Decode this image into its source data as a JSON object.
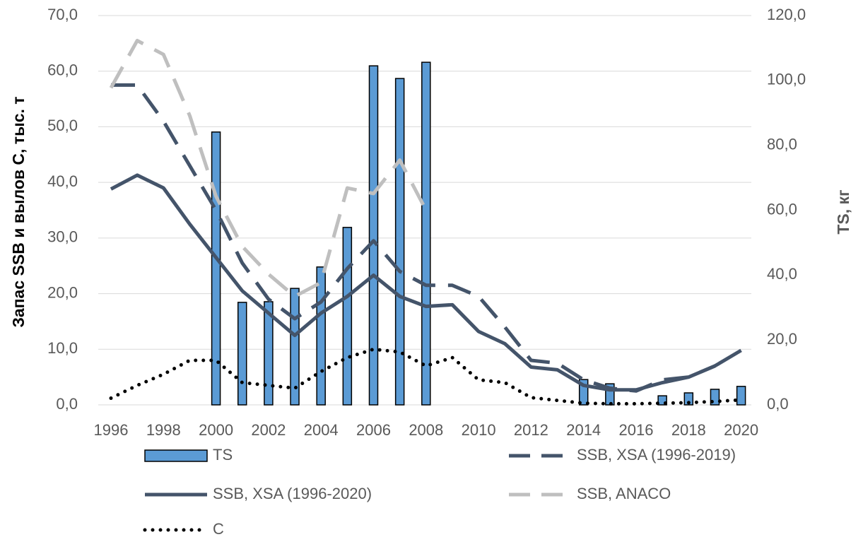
{
  "chart_data": {
    "type": "bar_line",
    "y_label": "Запас SSB и вылов С, тыс. т",
    "y2_label": "TS, кг",
    "categories": [
      "1996",
      null,
      "1998",
      null,
      "2000",
      null,
      "2002",
      null,
      "2004",
      null,
      "2006",
      null,
      "2008",
      null,
      "2010",
      null,
      "2012",
      null,
      "2014",
      null,
      "2016",
      null,
      "2018",
      null,
      "2020"
    ],
    "ylim": [
      0,
      70
    ],
    "yticks": [
      {
        "value": 0,
        "label": "0,0"
      },
      {
        "value": 10,
        "label": "10,0"
      },
      {
        "value": 20,
        "label": "20,0"
      },
      {
        "value": 30,
        "label": "30,0"
      },
      {
        "value": 40,
        "label": "40,0"
      },
      {
        "value": 50,
        "label": "50,0"
      },
      {
        "value": 60,
        "label": "60,0"
      },
      {
        "value": 70,
        "label": "70,0"
      }
    ],
    "y2lim": [
      0,
      120
    ],
    "y2ticks": [
      {
        "value": 0,
        "label": "0,0"
      },
      {
        "value": 20,
        "label": "20,0"
      },
      {
        "value": 40,
        "label": "40,0"
      },
      {
        "value": 60,
        "label": "60,0"
      },
      {
        "value": 80,
        "label": "80,0"
      },
      {
        "value": 100,
        "label": "100,0"
      },
      {
        "value": 120,
        "label": "120,0"
      }
    ],
    "grid": true,
    "series": [
      {
        "name": "TS",
        "kind": "bar",
        "axis": "y2",
        "color": "#5b9bd5",
        "values": [
          null,
          null,
          null,
          null,
          84.1,
          31.6,
          31.8,
          35.9,
          42.5,
          54.7,
          104.5,
          100.6,
          105.6,
          null,
          null,
          null,
          null,
          null,
          7.8,
          6.5,
          null,
          2.8,
          3.7,
          4.8,
          5.7
        ]
      },
      {
        "name": "SSB, XSA (1996-2019)",
        "kind": "dashed",
        "color": "#44546a",
        "values": [
          57.5,
          57.5,
          51.0,
          43.0,
          35.0,
          25.5,
          19.0,
          15.5,
          18.5,
          24.5,
          29.5,
          24.0,
          21.5,
          21.5,
          19.5,
          14.0,
          8.0,
          7.5,
          4.5,
          3.0,
          2.5,
          4.5,
          5.0,
          7.0,
          null
        ]
      },
      {
        "name": "SSB, XSA (1996-2020)",
        "kind": "solid",
        "color": "#44546a",
        "values": [
          38.8,
          41.3,
          39.0,
          32.5,
          26.5,
          20.5,
          16.5,
          12.5,
          16.5,
          19.5,
          23.3,
          19.5,
          17.7,
          18.0,
          13.2,
          11.0,
          6.8,
          6.3,
          3.5,
          2.7,
          2.7,
          4.0,
          5.0,
          7.0,
          9.8
        ]
      },
      {
        "name": "SSB, ANACO",
        "kind": "dashed",
        "color": "#bfbfbf",
        "values": [
          57.0,
          65.5,
          63.0,
          52.0,
          37.5,
          28.5,
          23.5,
          19.5,
          22.0,
          39.0,
          38.0,
          44.0,
          35.0,
          null,
          null,
          null,
          null,
          null,
          null,
          null,
          null,
          null,
          null,
          null,
          null
        ]
      },
      {
        "name": "C",
        "kind": "dotted",
        "color": "#000000",
        "values": [
          1.2,
          3.5,
          5.5,
          8.0,
          8.0,
          4.0,
          3.5,
          3.0,
          6.0,
          8.5,
          10.0,
          9.5,
          7.0,
          8.5,
          4.5,
          4.0,
          1.3,
          0.8,
          0.3,
          0.2,
          0.2,
          0.3,
          0.4,
          0.6,
          0.9
        ]
      }
    ]
  }
}
